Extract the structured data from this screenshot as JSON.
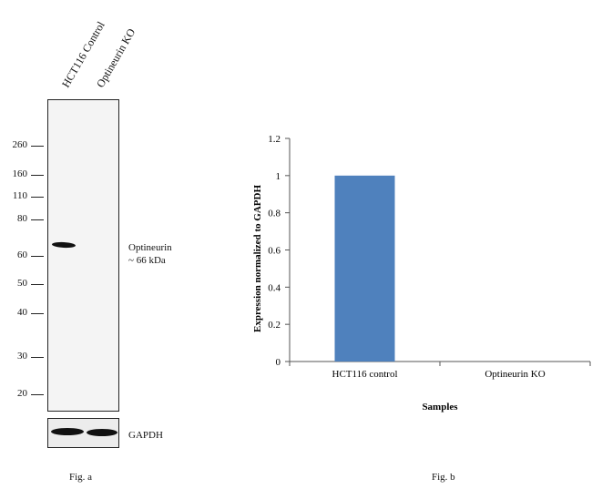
{
  "western_blot": {
    "lanes": [
      "HCT116 Control",
      "Optineurin KO"
    ],
    "markers": [
      "260",
      "160",
      "110",
      "80",
      "60",
      "50",
      "40",
      "30",
      "20"
    ],
    "band_label_line1": "Optineurin",
    "band_label_line2": "~ 66 kDa",
    "loading_control": "GAPDH",
    "caption": "Fig. a"
  },
  "chart_data": {
    "type": "bar",
    "categories": [
      "HCT116 control",
      "Optineurin KO"
    ],
    "values": [
      1,
      0
    ],
    "ylabel": "Expression normalized to GAPDH",
    "xlabel": "Samples",
    "ylim": [
      0,
      1.2
    ],
    "yticks": [
      "0",
      "0.2",
      "0.4",
      "0.6",
      "0.8",
      "1",
      "1.2"
    ],
    "bar_color": "#4f81bd",
    "grid": false,
    "caption": "Fig. b"
  }
}
